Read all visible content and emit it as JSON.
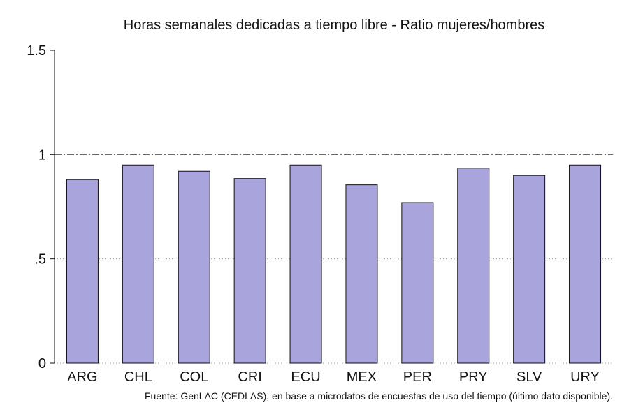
{
  "chart_data": {
    "type": "bar",
    "title": "Horas semanales dedicadas a tiempo libre - Ratio mujeres/hombres",
    "xlabel": "",
    "ylabel": "",
    "categories": [
      "ARG",
      "CHL",
      "COL",
      "CRI",
      "ECU",
      "MEX",
      "PER",
      "PRY",
      "SLV",
      "URY"
    ],
    "values": [
      0.88,
      0.95,
      0.92,
      0.885,
      0.95,
      0.855,
      0.77,
      0.935,
      0.9,
      0.95
    ],
    "ylim": [
      0,
      1.5
    ],
    "yticks": [
      {
        "value": 0,
        "label": "0"
      },
      {
        "value": 0.5,
        "label": ".5"
      },
      {
        "value": 1,
        "label": "1"
      },
      {
        "value": 1.5,
        "label": "1.5"
      }
    ],
    "reference_line": {
      "value": 1,
      "style": "dash-dot"
    },
    "grid": "dotted at .5 and 0",
    "bar_color": "#a9a4dc",
    "bar_edge_color": "#111111",
    "note": "Fuente: GenLAC (CEDLAS), en base a microdatos de encuestas de uso del tiempo (último dato disponible)."
  }
}
